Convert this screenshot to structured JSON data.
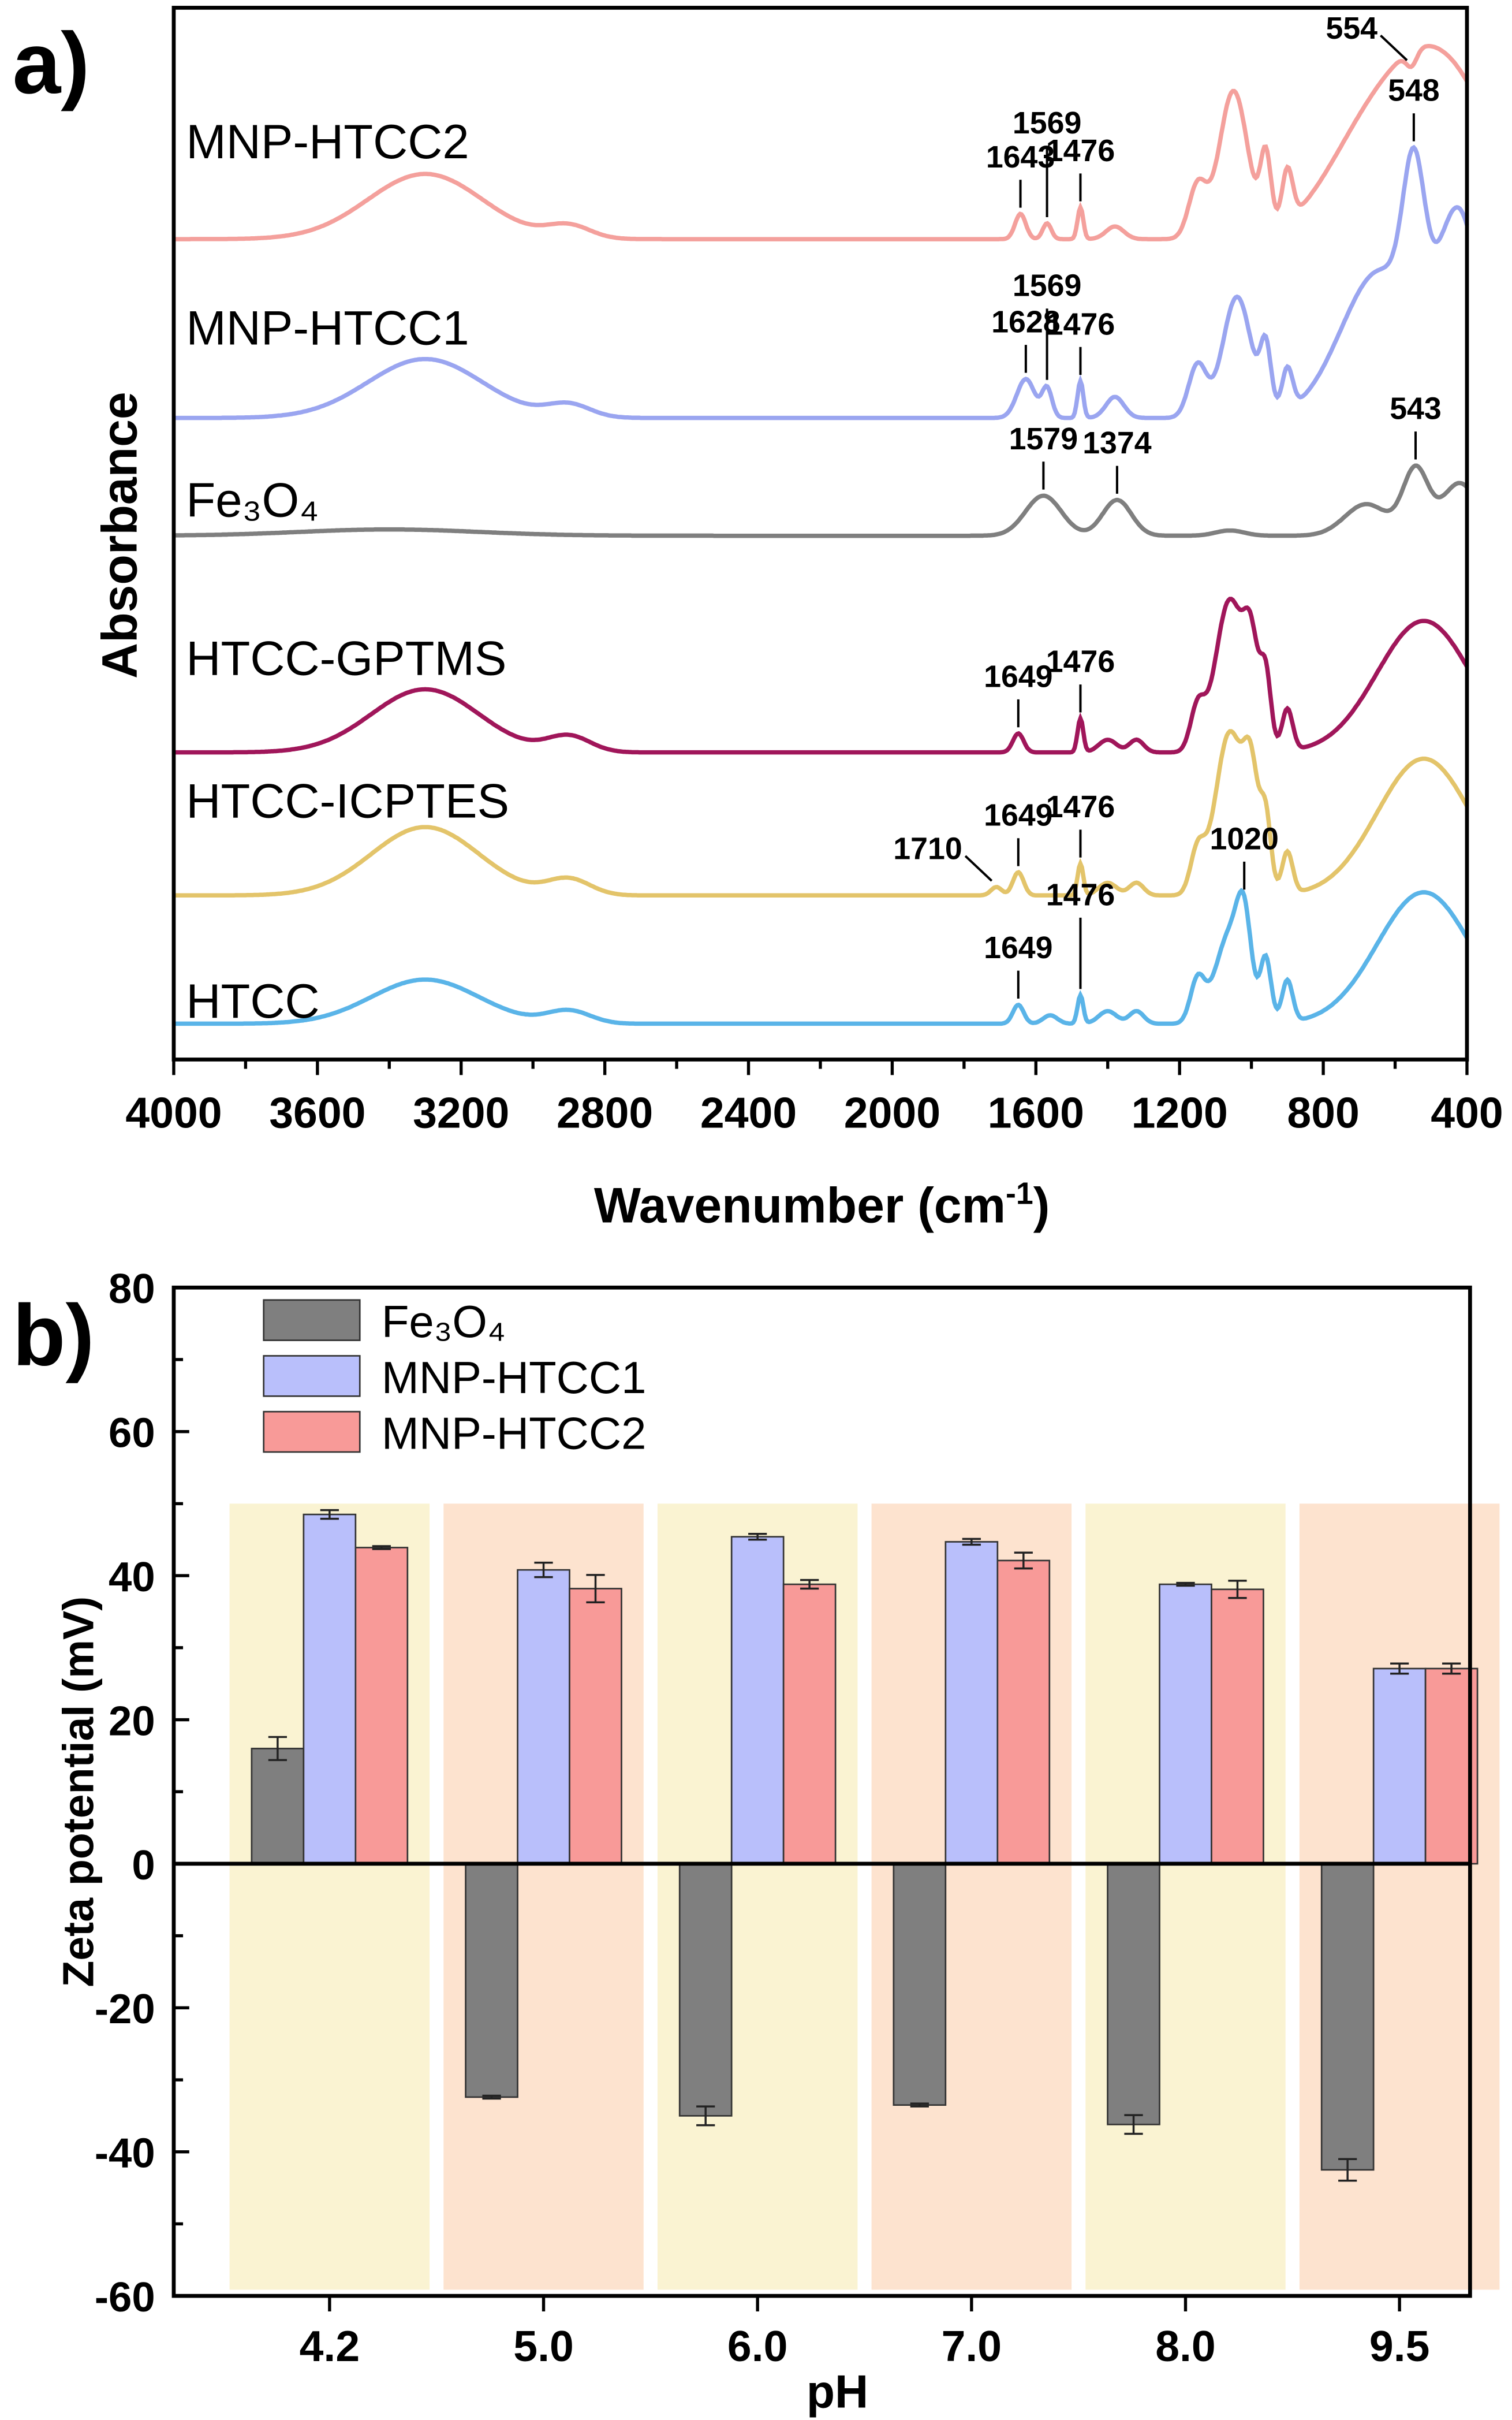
{
  "chart_data": [
    {
      "panel_label": "a)",
      "type": "line",
      "title": "",
      "xlabel": "Wavenumber (cm",
      "xlabel_sup": "-1",
      "xlabel_end": ")",
      "ylabel": "Absorbance",
      "xlim": [
        4000,
        400
      ],
      "ylim": [
        0,
        100
      ],
      "xticks": [
        4000,
        3600,
        3200,
        2800,
        2400,
        2000,
        1600,
        1200,
        800,
        400
      ],
      "xtick_labels": [
        "4000",
        "3600",
        "3200",
        "2800",
        "2400",
        "2000",
        "1600",
        "1200",
        "800",
        "400"
      ],
      "series": [
        {
          "name": "MNP-HTCC2",
          "color": "#f4a09c",
          "offset": 78,
          "peaks": [
            [
              3300,
              6.2,
              160
            ],
            [
              2900,
              1.2,
              60
            ],
            [
              1643,
              2.4,
              15
            ],
            [
              1569,
              1.5,
              12
            ],
            [
              1476,
              3,
              8
            ],
            [
              1380,
              1.2,
              25
            ],
            [
              1150,
              5,
              25
            ],
            [
              1050,
              14,
              40
            ],
            [
              960,
              7,
              15
            ],
            [
              900,
              5,
              15
            ],
            [
              700,
              6,
              120
            ],
            [
              480,
              17,
              150
            ],
            [
              554,
              -1.5,
              15
            ]
          ],
          "annotations": [
            {
              "label": "1643",
              "x": 1643
            },
            {
              "label": "1569",
              "x": 1569,
              "high": true
            },
            {
              "label": "1476",
              "x": 1476
            },
            {
              "label": "554",
              "x": 554,
              "side": "left"
            }
          ]
        },
        {
          "name": "MNP-HTCC1",
          "color": "#9aa5f0",
          "offset": 61,
          "peaks": [
            [
              3300,
              5.6,
              160
            ],
            [
              2900,
              1.2,
              60
            ],
            [
              1628,
              3.7,
              25
            ],
            [
              1569,
              2.8,
              14
            ],
            [
              1476,
              3.5,
              8
            ],
            [
              1380,
              2,
              25
            ],
            [
              1150,
              5,
              25
            ],
            [
              1040,
              11.5,
              40
            ],
            [
              960,
              6,
              15
            ],
            [
              900,
              4,
              15
            ],
            [
              640,
              14,
              110
            ],
            [
              548,
              14,
              30
            ],
            [
              420,
              18,
              60
            ]
          ],
          "annotations": [
            {
              "label": "1628",
              "x": 1628
            },
            {
              "label": "1569",
              "x": 1569,
              "high": true
            },
            {
              "label": "1476",
              "x": 1476
            },
            {
              "label": "548",
              "x": 548
            }
          ]
        },
        {
          "name": "Fe₃O₄",
          "color": "#7f7f7f",
          "offset": 49.8,
          "peaks": [
            [
              3400,
              0.6,
              250
            ],
            [
              1579,
              3.8,
              50
            ],
            [
              1374,
              3.4,
              40
            ],
            [
              1060,
              0.5,
              40
            ],
            [
              680,
              3,
              60
            ],
            [
              543,
              6.2,
              35
            ],
            [
              420,
              5,
              50
            ]
          ],
          "annotations": [
            {
              "label": "1579",
              "x": 1579
            },
            {
              "label": "1374",
              "x": 1374
            },
            {
              "label": "543",
              "x": 543
            }
          ]
        },
        {
          "name": "HTCC-GPTMS",
          "color": "#a0165a",
          "offset": 29.2,
          "peaks": [
            [
              3300,
              6,
              150
            ],
            [
              2900,
              1.5,
              60
            ],
            [
              1649,
              1.8,
              15
            ],
            [
              1476,
              3.2,
              8
            ],
            [
              1400,
              1.2,
              25
            ],
            [
              1320,
              1.2,
              20
            ],
            [
              1150,
              4,
              20
            ],
            [
              1060,
              14.5,
              40
            ],
            [
              1000,
              8,
              20
            ],
            [
              960,
              7,
              15
            ],
            [
              900,
              4,
              15
            ],
            [
              520,
              12.5,
              130
            ]
          ],
          "annotations": [
            {
              "label": "1649",
              "x": 1649
            },
            {
              "label": "1476",
              "x": 1476
            }
          ]
        },
        {
          "name": "HTCC-ICPTES",
          "color": "#e3c46a",
          "offset": 15.6,
          "peaks": [
            [
              3300,
              6.5,
              150
            ],
            [
              2900,
              1.5,
              60
            ],
            [
              1710,
              0.8,
              15
            ],
            [
              1649,
              2.2,
              15
            ],
            [
              1476,
              3,
              8
            ],
            [
              1400,
              1.2,
              25
            ],
            [
              1320,
              1.2,
              20
            ],
            [
              1150,
              4,
              20
            ],
            [
              1060,
              15.5,
              40
            ],
            [
              1000,
              9,
              20
            ],
            [
              960,
              7,
              15
            ],
            [
              900,
              4,
              15
            ],
            [
              520,
              13,
              130
            ]
          ],
          "annotations": [
            {
              "label": "1710",
              "x": 1710,
              "side": "left"
            },
            {
              "label": "1649",
              "x": 1649
            },
            {
              "label": "1476",
              "x": 1476
            }
          ]
        },
        {
          "name": "HTCC",
          "color": "#5ab4e8",
          "offset": 3.4,
          "peaks": [
            [
              3300,
              4.2,
              150
            ],
            [
              2900,
              1.2,
              60
            ],
            [
              1649,
              1.8,
              15
            ],
            [
              1560,
              0.8,
              20
            ],
            [
              1476,
              2.7,
              8
            ],
            [
              1400,
              1.2,
              25
            ],
            [
              1320,
              1.2,
              20
            ],
            [
              1150,
              4,
              20
            ],
            [
              1060,
              8.5,
              40
            ],
            [
              1020,
              7,
              20
            ],
            [
              960,
              6,
              15
            ],
            [
              900,
              4,
              15
            ],
            [
              520,
              12.5,
              130
            ]
          ],
          "annotations": [
            {
              "label": "1649",
              "x": 1649
            },
            {
              "label": "1476",
              "x": 1476,
              "high": true
            },
            {
              "label": "1020",
              "x": 1020
            }
          ]
        }
      ]
    },
    {
      "panel_label": "b)",
      "type": "bar",
      "xlabel": "pH",
      "ylabel": "Zeta potential (mV)",
      "ylim": [
        -60,
        80
      ],
      "yticks": [
        -60,
        -40,
        -20,
        0,
        20,
        40,
        60,
        80
      ],
      "ytick_labels": [
        "-60",
        "-40",
        "-20",
        "0",
        "20",
        "40",
        "60",
        "80"
      ],
      "categories": [
        "4.2",
        "5.0",
        "6.0",
        "7.0",
        "8.0",
        "9.5"
      ],
      "background_colors": [
        "#faf3d2",
        "#fde3cf"
      ],
      "legend_position": "top-left",
      "series": [
        {
          "name": "Fe₃O₄",
          "color": "#7f7f7f",
          "values": [
            16,
            -32.4,
            -35,
            -33.5,
            -36.2,
            -42.5
          ],
          "errors": [
            1.6,
            0.2,
            1.3,
            0.2,
            1.3,
            1.5
          ]
        },
        {
          "name": "MNP-HTCC1",
          "color": "#b9bffb",
          "values": [
            48.5,
            40.8,
            45.4,
            44.7,
            38.8,
            27.1
          ],
          "errors": [
            0.6,
            1.0,
            0.4,
            0.4,
            0.2,
            0.7
          ]
        },
        {
          "name": "MNP-HTCC2",
          "color": "#f89a98",
          "values": [
            43.9,
            38.2,
            38.8,
            42.1,
            38.1,
            27.1
          ],
          "errors": [
            0.2,
            1.9,
            0.6,
            1.1,
            1.2,
            0.7
          ]
        }
      ]
    }
  ]
}
